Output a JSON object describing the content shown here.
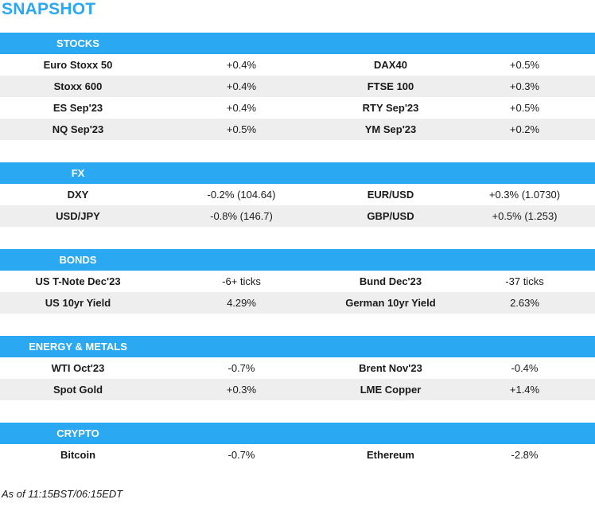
{
  "title": "SNAPSHOT",
  "sections": [
    {
      "header": "STOCKS",
      "rows": [
        {
          "name1": "Euro Stoxx 50",
          "val1": "+0.4%",
          "name2": "DAX40",
          "val2": "+0.5%"
        },
        {
          "name1": "Stoxx 600",
          "val1": "+0.4%",
          "name2": "FTSE 100",
          "val2": "+0.3%"
        },
        {
          "name1": "ES Sep'23",
          "val1": "+0.4%",
          "name2": "RTY Sep'23",
          "val2": "+0.5%"
        },
        {
          "name1": "NQ Sep'23",
          "val1": "+0.5%",
          "name2": "YM Sep'23",
          "val2": "+0.2%"
        }
      ]
    },
    {
      "header": "FX",
      "rows": [
        {
          "name1": "DXY",
          "val1": "-0.2% (104.64)",
          "name2": "EUR/USD",
          "val2": "+0.3% (1.0730)"
        },
        {
          "name1": "USD/JPY",
          "val1": "-0.8% (146.7)",
          "name2": "GBP/USD",
          "val2": "+0.5% (1.253)"
        }
      ]
    },
    {
      "header": "BONDS",
      "rows": [
        {
          "name1": "US T-Note Dec'23",
          "val1": "-6+ ticks",
          "name2": "Bund Dec'23",
          "val2": "-37 ticks"
        },
        {
          "name1": "US 10yr Yield",
          "val1": "4.29%",
          "name2": "German 10yr Yield",
          "val2": "2.63%"
        }
      ]
    },
    {
      "header": "ENERGY & METALS",
      "rows": [
        {
          "name1": "WTI Oct'23",
          "val1": "-0.7%",
          "name2": "Brent Nov'23",
          "val2": "-0.4%"
        },
        {
          "name1": "Spot Gold",
          "val1": "+0.3%",
          "name2": "LME Copper",
          "val2": "+1.4%"
        }
      ]
    },
    {
      "header": "CRYPTO",
      "rows": [
        {
          "name1": "Bitcoin",
          "val1": "-0.7%",
          "name2": "Ethereum",
          "val2": "-2.8%"
        }
      ]
    }
  ],
  "footer": "As of 11:15BST/06:15EDT"
}
